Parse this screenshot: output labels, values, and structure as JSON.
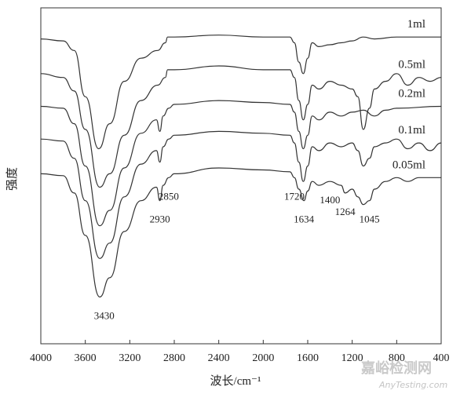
{
  "chart_data": {
    "type": "line",
    "xlabel": "波长/cm⁻¹",
    "ylabel": "强度",
    "xlim": [
      4000,
      400
    ],
    "x_ticks": [
      4000,
      3600,
      3200,
      2800,
      2400,
      2000,
      1600,
      1200,
      800,
      400
    ],
    "x_tick_labels": [
      "4000",
      "3600",
      "3200",
      "2800",
      "2400",
      "2000",
      "1600",
      "1200",
      "800",
      "400"
    ],
    "series": [
      {
        "name": "1ml",
        "points": [
          [
            4000,
            0.92
          ],
          [
            3800,
            0.91
          ],
          [
            3700,
            0.86
          ],
          [
            3600,
            0.62
          ],
          [
            3480,
            0.35
          ],
          [
            3380,
            0.48
          ],
          [
            3250,
            0.7
          ],
          [
            3100,
            0.82
          ],
          [
            2950,
            0.86
          ],
          [
            2880,
            0.9
          ],
          [
            2860,
            0.93
          ],
          [
            2800,
            0.93
          ],
          [
            2400,
            0.94
          ],
          [
            2000,
            0.93
          ],
          [
            1760,
            0.93
          ],
          [
            1720,
            0.9
          ],
          [
            1680,
            0.8
          ],
          [
            1640,
            0.74
          ],
          [
            1600,
            0.82
          ],
          [
            1560,
            0.9
          ],
          [
            1500,
            0.88
          ],
          [
            1400,
            0.89
          ],
          [
            1300,
            0.9
          ],
          [
            1200,
            0.91
          ],
          [
            1100,
            0.93
          ],
          [
            1000,
            0.92
          ],
          [
            800,
            0.93
          ],
          [
            400,
            0.93
          ]
        ]
      },
      {
        "name": "0.5ml",
        "points": [
          [
            4000,
            0.74
          ],
          [
            3800,
            0.72
          ],
          [
            3700,
            0.65
          ],
          [
            3600,
            0.45
          ],
          [
            3470,
            0.15
          ],
          [
            3380,
            0.22
          ],
          [
            3250,
            0.42
          ],
          [
            3100,
            0.6
          ],
          [
            2950,
            0.68
          ],
          [
            2880,
            0.72
          ],
          [
            2860,
            0.76
          ],
          [
            2800,
            0.76
          ],
          [
            2400,
            0.78
          ],
          [
            2000,
            0.76
          ],
          [
            1760,
            0.76
          ],
          [
            1720,
            0.72
          ],
          [
            1680,
            0.6
          ],
          [
            1640,
            0.5
          ],
          [
            1600,
            0.58
          ],
          [
            1560,
            0.68
          ],
          [
            1500,
            0.66
          ],
          [
            1400,
            0.7
          ],
          [
            1300,
            0.68
          ],
          [
            1200,
            0.66
          ],
          [
            1150,
            0.62
          ],
          [
            1100,
            0.45
          ],
          [
            1045,
            0.56
          ],
          [
            1000,
            0.66
          ],
          [
            900,
            0.7
          ],
          [
            800,
            0.74
          ],
          [
            700,
            0.68
          ],
          [
            600,
            0.72
          ],
          [
            500,
            0.7
          ],
          [
            400,
            0.72
          ]
        ]
      },
      {
        "name": "0.2ml",
        "points": [
          [
            4000,
            0.57
          ],
          [
            3800,
            0.56
          ],
          [
            3700,
            0.48
          ],
          [
            3600,
            0.26
          ],
          [
            3470,
            -0.05
          ],
          [
            3380,
            0.03
          ],
          [
            3250,
            0.25
          ],
          [
            3100,
            0.43
          ],
          [
            2960,
            0.5
          ],
          [
            2930,
            0.44
          ],
          [
            2900,
            0.52
          ],
          [
            2850,
            0.56
          ],
          [
            2800,
            0.58
          ],
          [
            2400,
            0.6
          ],
          [
            2000,
            0.59
          ],
          [
            1760,
            0.58
          ],
          [
            1720,
            0.54
          ],
          [
            1680,
            0.44
          ],
          [
            1640,
            0.35
          ],
          [
            1600,
            0.42
          ],
          [
            1560,
            0.52
          ],
          [
            1500,
            0.5
          ],
          [
            1400,
            0.54
          ],
          [
            1300,
            0.52
          ],
          [
            1200,
            0.54
          ],
          [
            1100,
            0.55
          ],
          [
            1000,
            0.52
          ],
          [
            900,
            0.55
          ],
          [
            800,
            0.56
          ],
          [
            400,
            0.57
          ]
        ]
      },
      {
        "name": "0.1ml",
        "points": [
          [
            4000,
            0.4
          ],
          [
            3800,
            0.39
          ],
          [
            3700,
            0.3
          ],
          [
            3600,
            0.08
          ],
          [
            3470,
            -0.22
          ],
          [
            3380,
            -0.14
          ],
          [
            3250,
            0.1
          ],
          [
            3100,
            0.27
          ],
          [
            2960,
            0.34
          ],
          [
            2930,
            0.28
          ],
          [
            2900,
            0.36
          ],
          [
            2850,
            0.4
          ],
          [
            2800,
            0.42
          ],
          [
            2400,
            0.44
          ],
          [
            2000,
            0.43
          ],
          [
            1760,
            0.42
          ],
          [
            1720,
            0.38
          ],
          [
            1680,
            0.28
          ],
          [
            1640,
            0.18
          ],
          [
            1600,
            0.26
          ],
          [
            1560,
            0.36
          ],
          [
            1500,
            0.34
          ],
          [
            1400,
            0.38
          ],
          [
            1300,
            0.36
          ],
          [
            1200,
            0.38
          ],
          [
            1150,
            0.34
          ],
          [
            1100,
            0.26
          ],
          [
            1045,
            0.3
          ],
          [
            1000,
            0.36
          ],
          [
            900,
            0.38
          ],
          [
            800,
            0.4
          ],
          [
            700,
            0.35
          ],
          [
            600,
            0.38
          ],
          [
            500,
            0.34
          ],
          [
            400,
            0.38
          ]
        ]
      },
      {
        "name": "0.05ml",
        "points": [
          [
            4000,
            0.22
          ],
          [
            3800,
            0.21
          ],
          [
            3700,
            0.12
          ],
          [
            3600,
            -0.1
          ],
          [
            3470,
            -0.42
          ],
          [
            3380,
            -0.32
          ],
          [
            3250,
            -0.08
          ],
          [
            3100,
            0.08
          ],
          [
            2960,
            0.15
          ],
          [
            2930,
            0.08
          ],
          [
            2900,
            0.16
          ],
          [
            2850,
            0.2
          ],
          [
            2800,
            0.22
          ],
          [
            2400,
            0.25
          ],
          [
            2000,
            0.24
          ],
          [
            1760,
            0.23
          ],
          [
            1720,
            0.2
          ],
          [
            1680,
            0.14
          ],
          [
            1634,
            0.08
          ],
          [
            1600,
            0.13
          ],
          [
            1560,
            0.18
          ],
          [
            1500,
            0.16
          ],
          [
            1400,
            0.18
          ],
          [
            1300,
            0.16
          ],
          [
            1264,
            0.12
          ],
          [
            1200,
            0.14
          ],
          [
            1150,
            0.1
          ],
          [
            1100,
            0.06
          ],
          [
            1045,
            0.08
          ],
          [
            1000,
            0.14
          ],
          [
            900,
            0.18
          ],
          [
            800,
            0.2
          ],
          [
            700,
            0.18
          ],
          [
            600,
            0.2
          ],
          [
            400,
            0.2
          ]
        ]
      }
    ],
    "annotations": [
      {
        "text": "3430",
        "x": 3430
      },
      {
        "text": "2930",
        "x": 2930
      },
      {
        "text": "2850",
        "x": 2850
      },
      {
        "text": "1720",
        "x": 1720
      },
      {
        "text": "1634",
        "x": 1634
      },
      {
        "text": "1400",
        "x": 1400
      },
      {
        "text": "1264",
        "x": 1264
      },
      {
        "text": "1045",
        "x": 1045
      }
    ]
  },
  "watermark": {
    "cn": "嘉峪检测网",
    "en": "AnyTesting.com"
  }
}
